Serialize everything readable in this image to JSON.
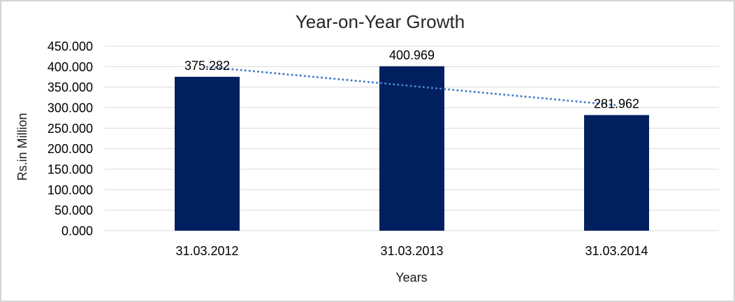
{
  "window": {
    "background": "#ffffff",
    "border_color": "#d4d4d4"
  },
  "chart_data": {
    "type": "bar",
    "title": "Year-on-Year Growth",
    "xlabel": "Years",
    "ylabel": "Rs.in Million",
    "categories": [
      "31.03.2012",
      "31.03.2013",
      "31.03.2014"
    ],
    "values": [
      375.282,
      400.969,
      281.962
    ],
    "data_labels": [
      "375.282",
      "400.969",
      "281.962"
    ],
    "ylim": [
      0,
      450
    ],
    "ytick_step": 50,
    "ytick_labels": [
      "0.000",
      "50.000",
      "100.000",
      "150.000",
      "200.000",
      "250.000",
      "300.000",
      "350.000",
      "400.000",
      "450.000"
    ],
    "grid": "horizontal-only",
    "legend": "none",
    "bar_color": "#002060",
    "gridline_color": "#d9d9d9",
    "trendline": {
      "type": "linear",
      "style": "dotted",
      "color": "#4a80c8"
    }
  }
}
